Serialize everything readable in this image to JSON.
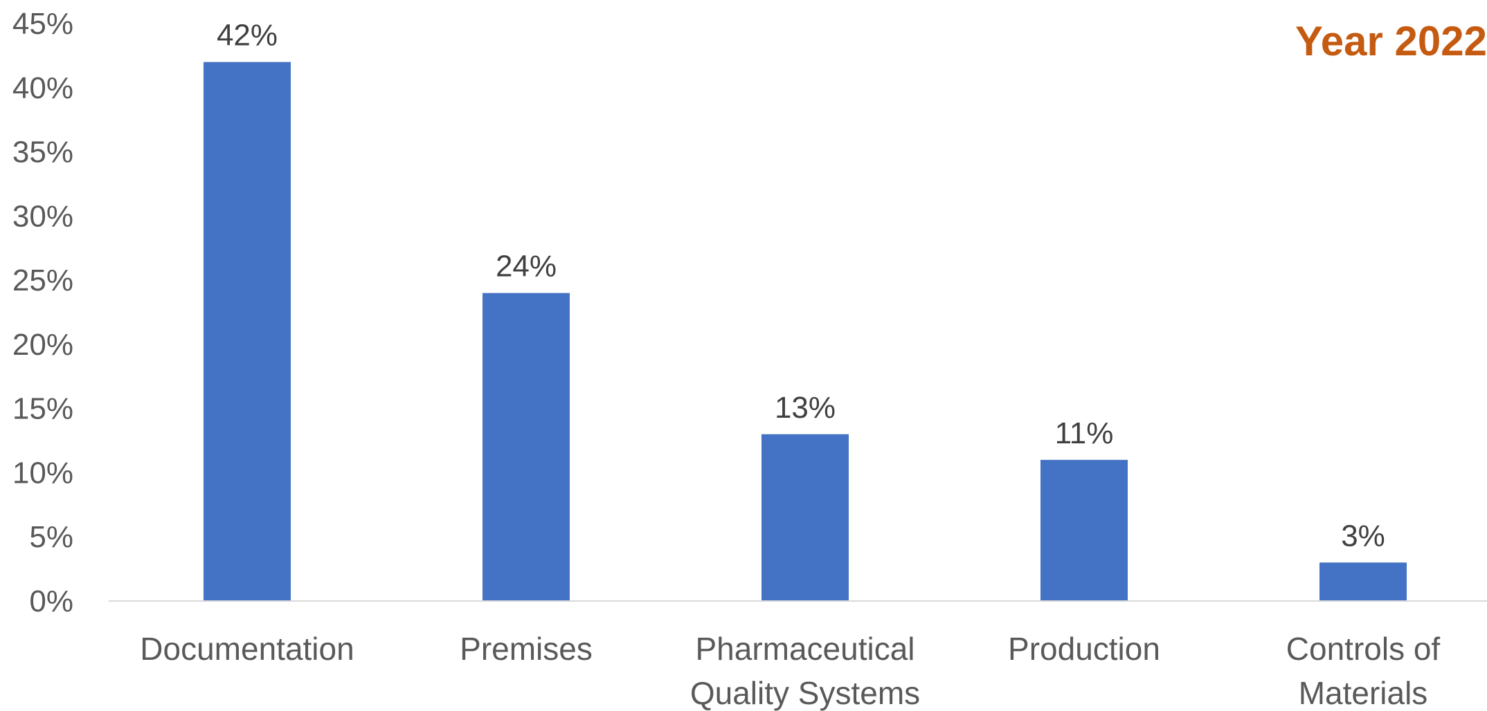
{
  "chart_data": {
    "type": "bar",
    "title": "Year 2022",
    "categories": [
      [
        "Documentation"
      ],
      [
        "Premises"
      ],
      [
        "Pharmaceutical",
        "Quality Systems"
      ],
      [
        "Production"
      ],
      [
        "Controls of",
        "Materials"
      ]
    ],
    "values": [
      42,
      24,
      13,
      11,
      3
    ],
    "data_labels": [
      "42%",
      "24%",
      "13%",
      "11%",
      "3%"
    ],
    "ylim": [
      0,
      45
    ],
    "yticks": [
      0,
      5,
      10,
      15,
      20,
      25,
      30,
      35,
      40,
      45
    ],
    "ytick_labels": [
      "0%",
      "5%",
      "10%",
      "15%",
      "20%",
      "25%",
      "30%",
      "35%",
      "40%",
      "45%"
    ],
    "xlabel": "",
    "ylabel": "",
    "grid": false,
    "legend": "none"
  },
  "colors": {
    "bar": "#4472C4",
    "title": "#C55A11",
    "axis_line": "#D9D9D9"
  }
}
